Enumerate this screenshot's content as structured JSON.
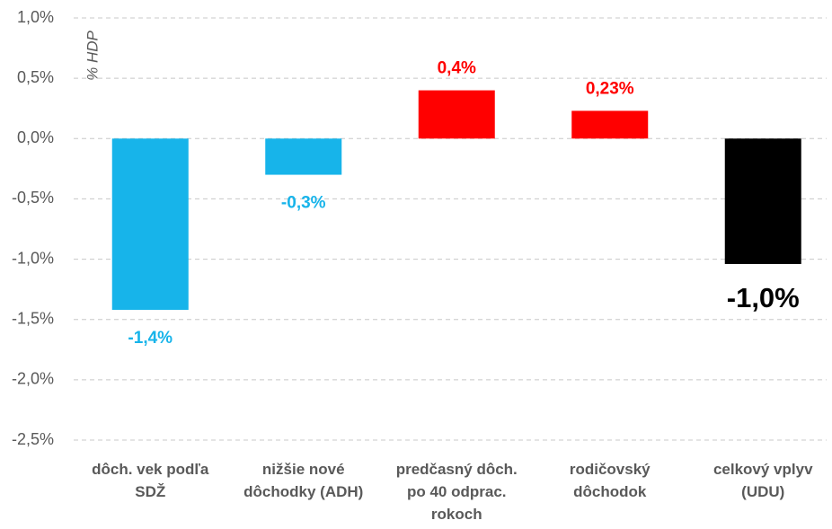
{
  "chart_data": {
    "type": "bar",
    "y_axis_label": "% HDP",
    "categories": [
      [
        "dôch. vek podľa",
        "SDŽ"
      ],
      [
        "nižšie nové",
        "dôchodky (ADH)"
      ],
      [
        "predčasný dôch.",
        "po 40 odprac.",
        "rokoch"
      ],
      [
        "rodičovský",
        "dôchodok"
      ],
      [
        "celkový vplyv",
        "(UDU)"
      ]
    ],
    "values": [
      -1.42,
      -0.3,
      0.4,
      0.23,
      -1.04
    ],
    "value_labels": [
      "-1,4%",
      "-0,3%",
      "0,4%",
      "0,23%",
      "-1,0%"
    ],
    "colors": [
      "#17b4ea",
      "#17b4ea",
      "#ff0000",
      "#ff0000",
      "#000000"
    ],
    "ylim": [
      -2.5,
      1.0
    ],
    "yticks": [
      {
        "value": -2.5,
        "label": "-2,5%"
      },
      {
        "value": -2.0,
        "label": "-2,0%"
      },
      {
        "value": -1.5,
        "label": "-1,5%"
      },
      {
        "value": -1.0,
        "label": "-1,0%"
      },
      {
        "value": -0.5,
        "label": "-0,5%"
      },
      {
        "value": 0,
        "label": "0,0%"
      },
      {
        "value": 0.5,
        "label": "0,5%"
      },
      {
        "value": 1.0,
        "label": "1,0%"
      }
    ],
    "grid": true
  }
}
